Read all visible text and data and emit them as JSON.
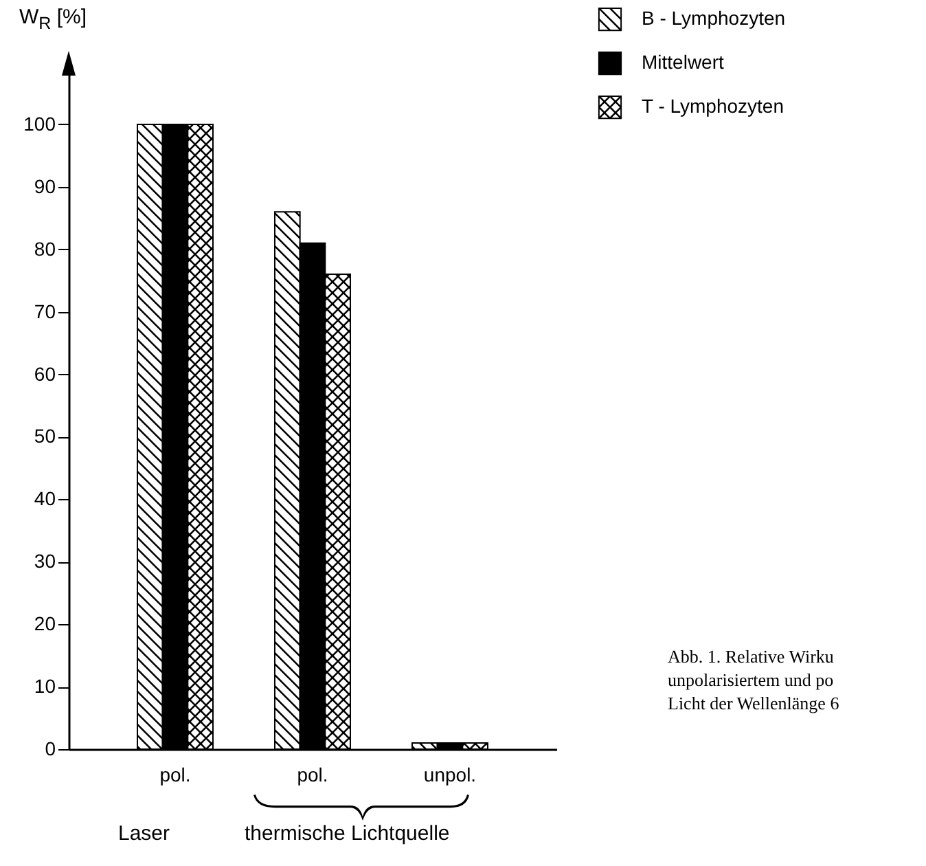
{
  "chart_data": {
    "type": "bar",
    "ylabel": "W$_{R}$ [%]",
    "categories": [
      "pol.",
      "pol.",
      "unpol."
    ],
    "series": [
      {
        "name": "B - Lymphozyten",
        "color": "#000000",
        "values": [
          100,
          86,
          1
        ]
      },
      {
        "name": "Mittelwert",
        "color": "#000000",
        "values": [
          100,
          81,
          1
        ]
      },
      {
        "name": "T - Lymphozyten",
        "color": "#000000",
        "values": [
          100,
          76,
          1
        ]
      }
    ],
    "ylim": [
      0,
      110
    ],
    "yticks": [
      0,
      10,
      20,
      30,
      40,
      50,
      60,
      70,
      80,
      90,
      100
    ],
    "grid": false,
    "legend": "top right",
    "annotations": [
      "Laser",
      "thermische Lichtquelle",
      "Abb. 1. Relative Wirku",
      "unpolarisiertem und po",
      "Licht der Wellenlänge 6"
    ]
  }
}
